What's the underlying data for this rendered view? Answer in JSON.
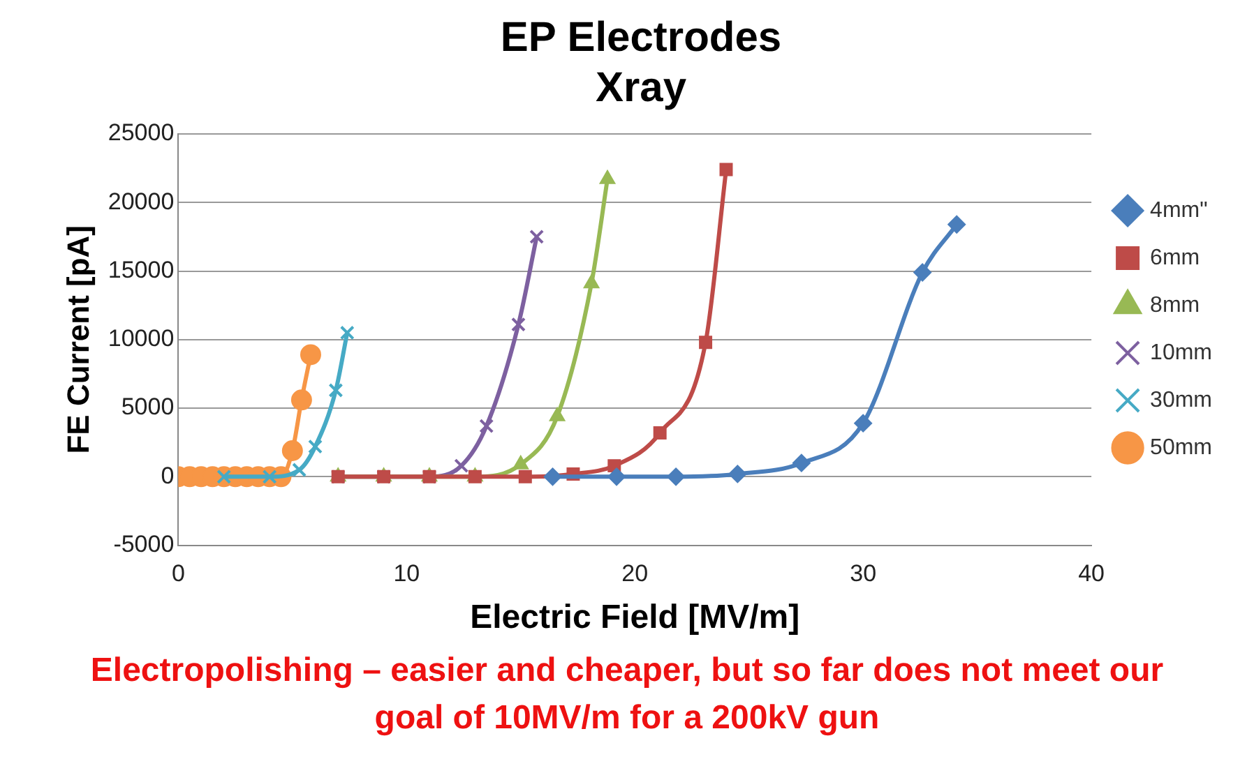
{
  "chart_data": {
    "type": "line",
    "title": "EP Electrodes\nXray",
    "xlabel": "Electric Field [MV/m]",
    "ylabel": "FE Current [pA]",
    "xlim": [
      0,
      40
    ],
    "xticks": [
      0,
      10,
      20,
      30,
      40
    ],
    "ylim": [
      -5000,
      25000
    ],
    "yticks": [
      -5000,
      0,
      5000,
      10000,
      15000,
      20000,
      25000
    ],
    "grid": "y",
    "legend": "right",
    "line_style": "solid",
    "series": [
      {
        "name": "4mm\"",
        "color": "#4a7ebb",
        "marker": "diamond",
        "x": [
          16.4,
          19.2,
          21.8,
          24.5,
          27.3,
          30.0,
          32.6,
          34.1
        ],
        "values": [
          0,
          0,
          0,
          200,
          1000,
          3900,
          14900,
          18400
        ]
      },
      {
        "name": "6mm",
        "color": "#be4b48",
        "marker": "square",
        "x": [
          7,
          9,
          11,
          13,
          15.2,
          17.3,
          19.1,
          21.1,
          23.1,
          24.0
        ],
        "values": [
          0,
          0,
          0,
          0,
          0,
          200,
          800,
          3200,
          9800,
          22400
        ]
      },
      {
        "name": "8mm",
        "color": "#98b954",
        "marker": "triangle",
        "x": [
          7,
          9,
          11,
          13,
          15.0,
          16.6,
          18.1,
          18.8
        ],
        "values": [
          0,
          0,
          0,
          0,
          900,
          4400,
          14100,
          21700
        ]
      },
      {
        "name": "10mm",
        "color": "#7d60a0",
        "marker": "cross",
        "x": [
          7,
          9,
          11,
          12.4,
          13.5,
          14.9,
          15.7
        ],
        "values": [
          0,
          0,
          0,
          800,
          3700,
          11100,
          17500
        ]
      },
      {
        "name": "30mm",
        "color": "#46aac5",
        "marker": "cross",
        "x": [
          2,
          4,
          5.3,
          6.0,
          6.9,
          7.4
        ],
        "values": [
          0,
          0,
          500,
          2200,
          6300,
          10500
        ]
      },
      {
        "name": "50mm",
        "color": "#f79646",
        "marker": "circle",
        "x": [
          0,
          0.5,
          1,
          1.5,
          2,
          2.5,
          3,
          3.5,
          4,
          4.5,
          5.0,
          5.4,
          5.8
        ],
        "values": [
          0,
          0,
          0,
          0,
          0,
          0,
          0,
          0,
          0,
          0,
          1900,
          5600,
          8900
        ]
      }
    ],
    "annotations": [
      "Electropolishing – easier and cheaper, but so far does not meet our goal of 10MV/m for a 200kV gun"
    ]
  }
}
